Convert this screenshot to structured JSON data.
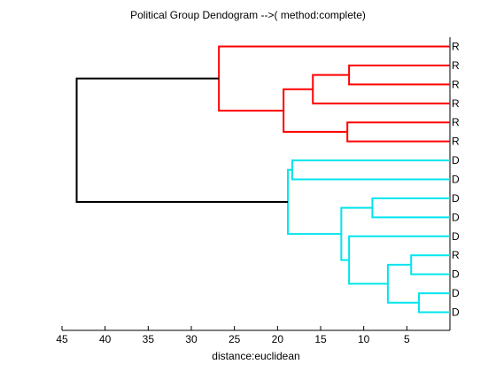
{
  "chart_data": {
    "type": "dendrogram",
    "title": "Political Group Dendogram -->( method:complete)",
    "xlabel": "distance:euclidean",
    "ylabel": "",
    "orientation": "right",
    "xlim": [
      45,
      0
    ],
    "xticks": [
      45,
      40,
      35,
      30,
      25,
      20,
      15,
      10,
      5
    ],
    "leaves": [
      "R",
      "R",
      "R",
      "R",
      "R",
      "R",
      "D",
      "D",
      "D",
      "D",
      "D",
      "R",
      "D",
      "D",
      "D"
    ],
    "merges": [
      {
        "left": "L0",
        "right": "N4",
        "height": 26.8,
        "color": "#ff0000"
      },
      {
        "left": "L1",
        "right": "L2",
        "height": 11.7,
        "color": "#ff0000"
      },
      {
        "left": "N1",
        "right": "L3",
        "height": 15.9,
        "color": "#ff0000"
      },
      {
        "left": "L4",
        "right": "L5",
        "height": 11.9,
        "color": "#ff0000"
      },
      {
        "left": "N2",
        "right": "N3",
        "height": 19.3,
        "color": "#ff0000"
      },
      {
        "left": "L6",
        "right": "L7",
        "height": 18.3,
        "color": "#00e5ee"
      },
      {
        "left": "L8",
        "right": "L9",
        "height": 9.0,
        "color": "#00e5ee"
      },
      {
        "left": "L11",
        "right": "L12",
        "height": 4.5,
        "color": "#00e5ee"
      },
      {
        "left": "L13",
        "right": "L14",
        "height": 3.6,
        "color": "#00e5ee"
      },
      {
        "left": "N7",
        "right": "N8",
        "height": 7.2,
        "color": "#00e5ee"
      },
      {
        "left": "L10",
        "right": "N9",
        "height": 11.7,
        "color": "#00e5ee"
      },
      {
        "left": "N6",
        "right": "N10",
        "height": 12.6,
        "color": "#00e5ee"
      },
      {
        "left": "N5",
        "right": "N11",
        "height": 18.8,
        "color": "#00e5ee"
      },
      {
        "left": "N0",
        "right": "N12",
        "height": 43.3,
        "color": "#000000"
      }
    ]
  }
}
